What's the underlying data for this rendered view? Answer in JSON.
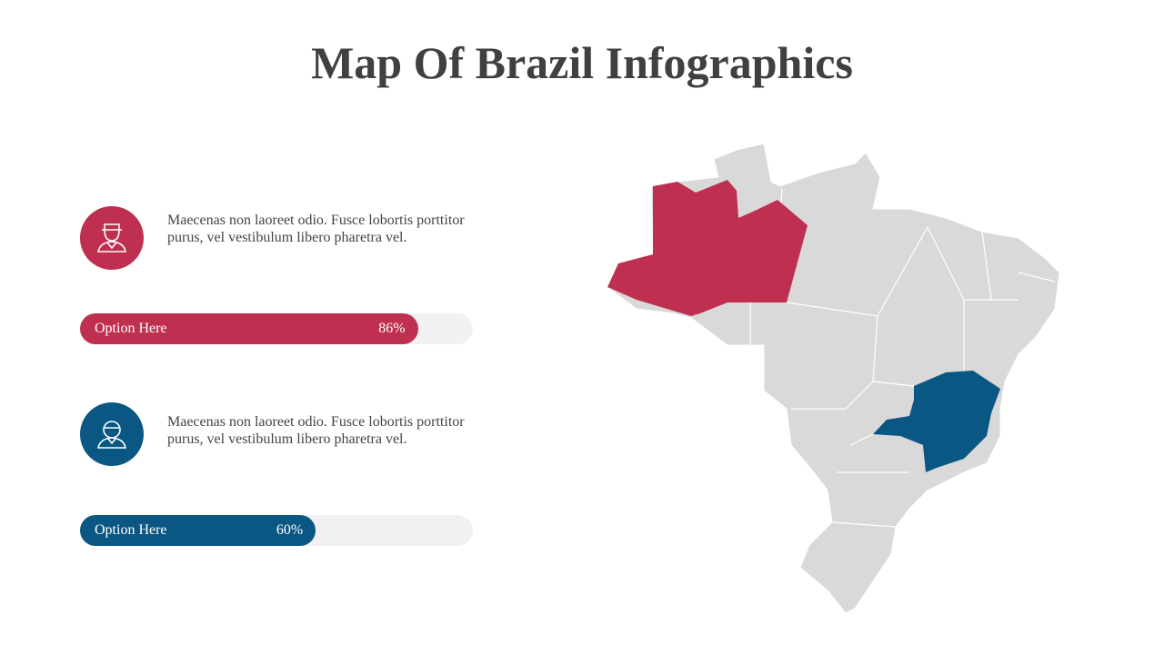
{
  "title": "Map Of Brazil Infographics",
  "items": [
    {
      "text": "Maecenas non laoreet odio. Fusce lobortis porttitor purus, vel vestibulum libero pharetra vel.",
      "color": "#be2f50",
      "bar": {
        "label": "Option Here",
        "value": 86,
        "value_label": "86%",
        "xlim": [
          0,
          100
        ]
      }
    },
    {
      "text": "Maecenas non laoreet odio. Fusce lobortis porttitor purus, vel vestibulum libero pharetra vel.",
      "color": "#0b5783",
      "bar": {
        "label": "Option Here",
        "value": 60,
        "value_label": "60%",
        "xlim": [
          0,
          100
        ]
      }
    }
  ]
}
